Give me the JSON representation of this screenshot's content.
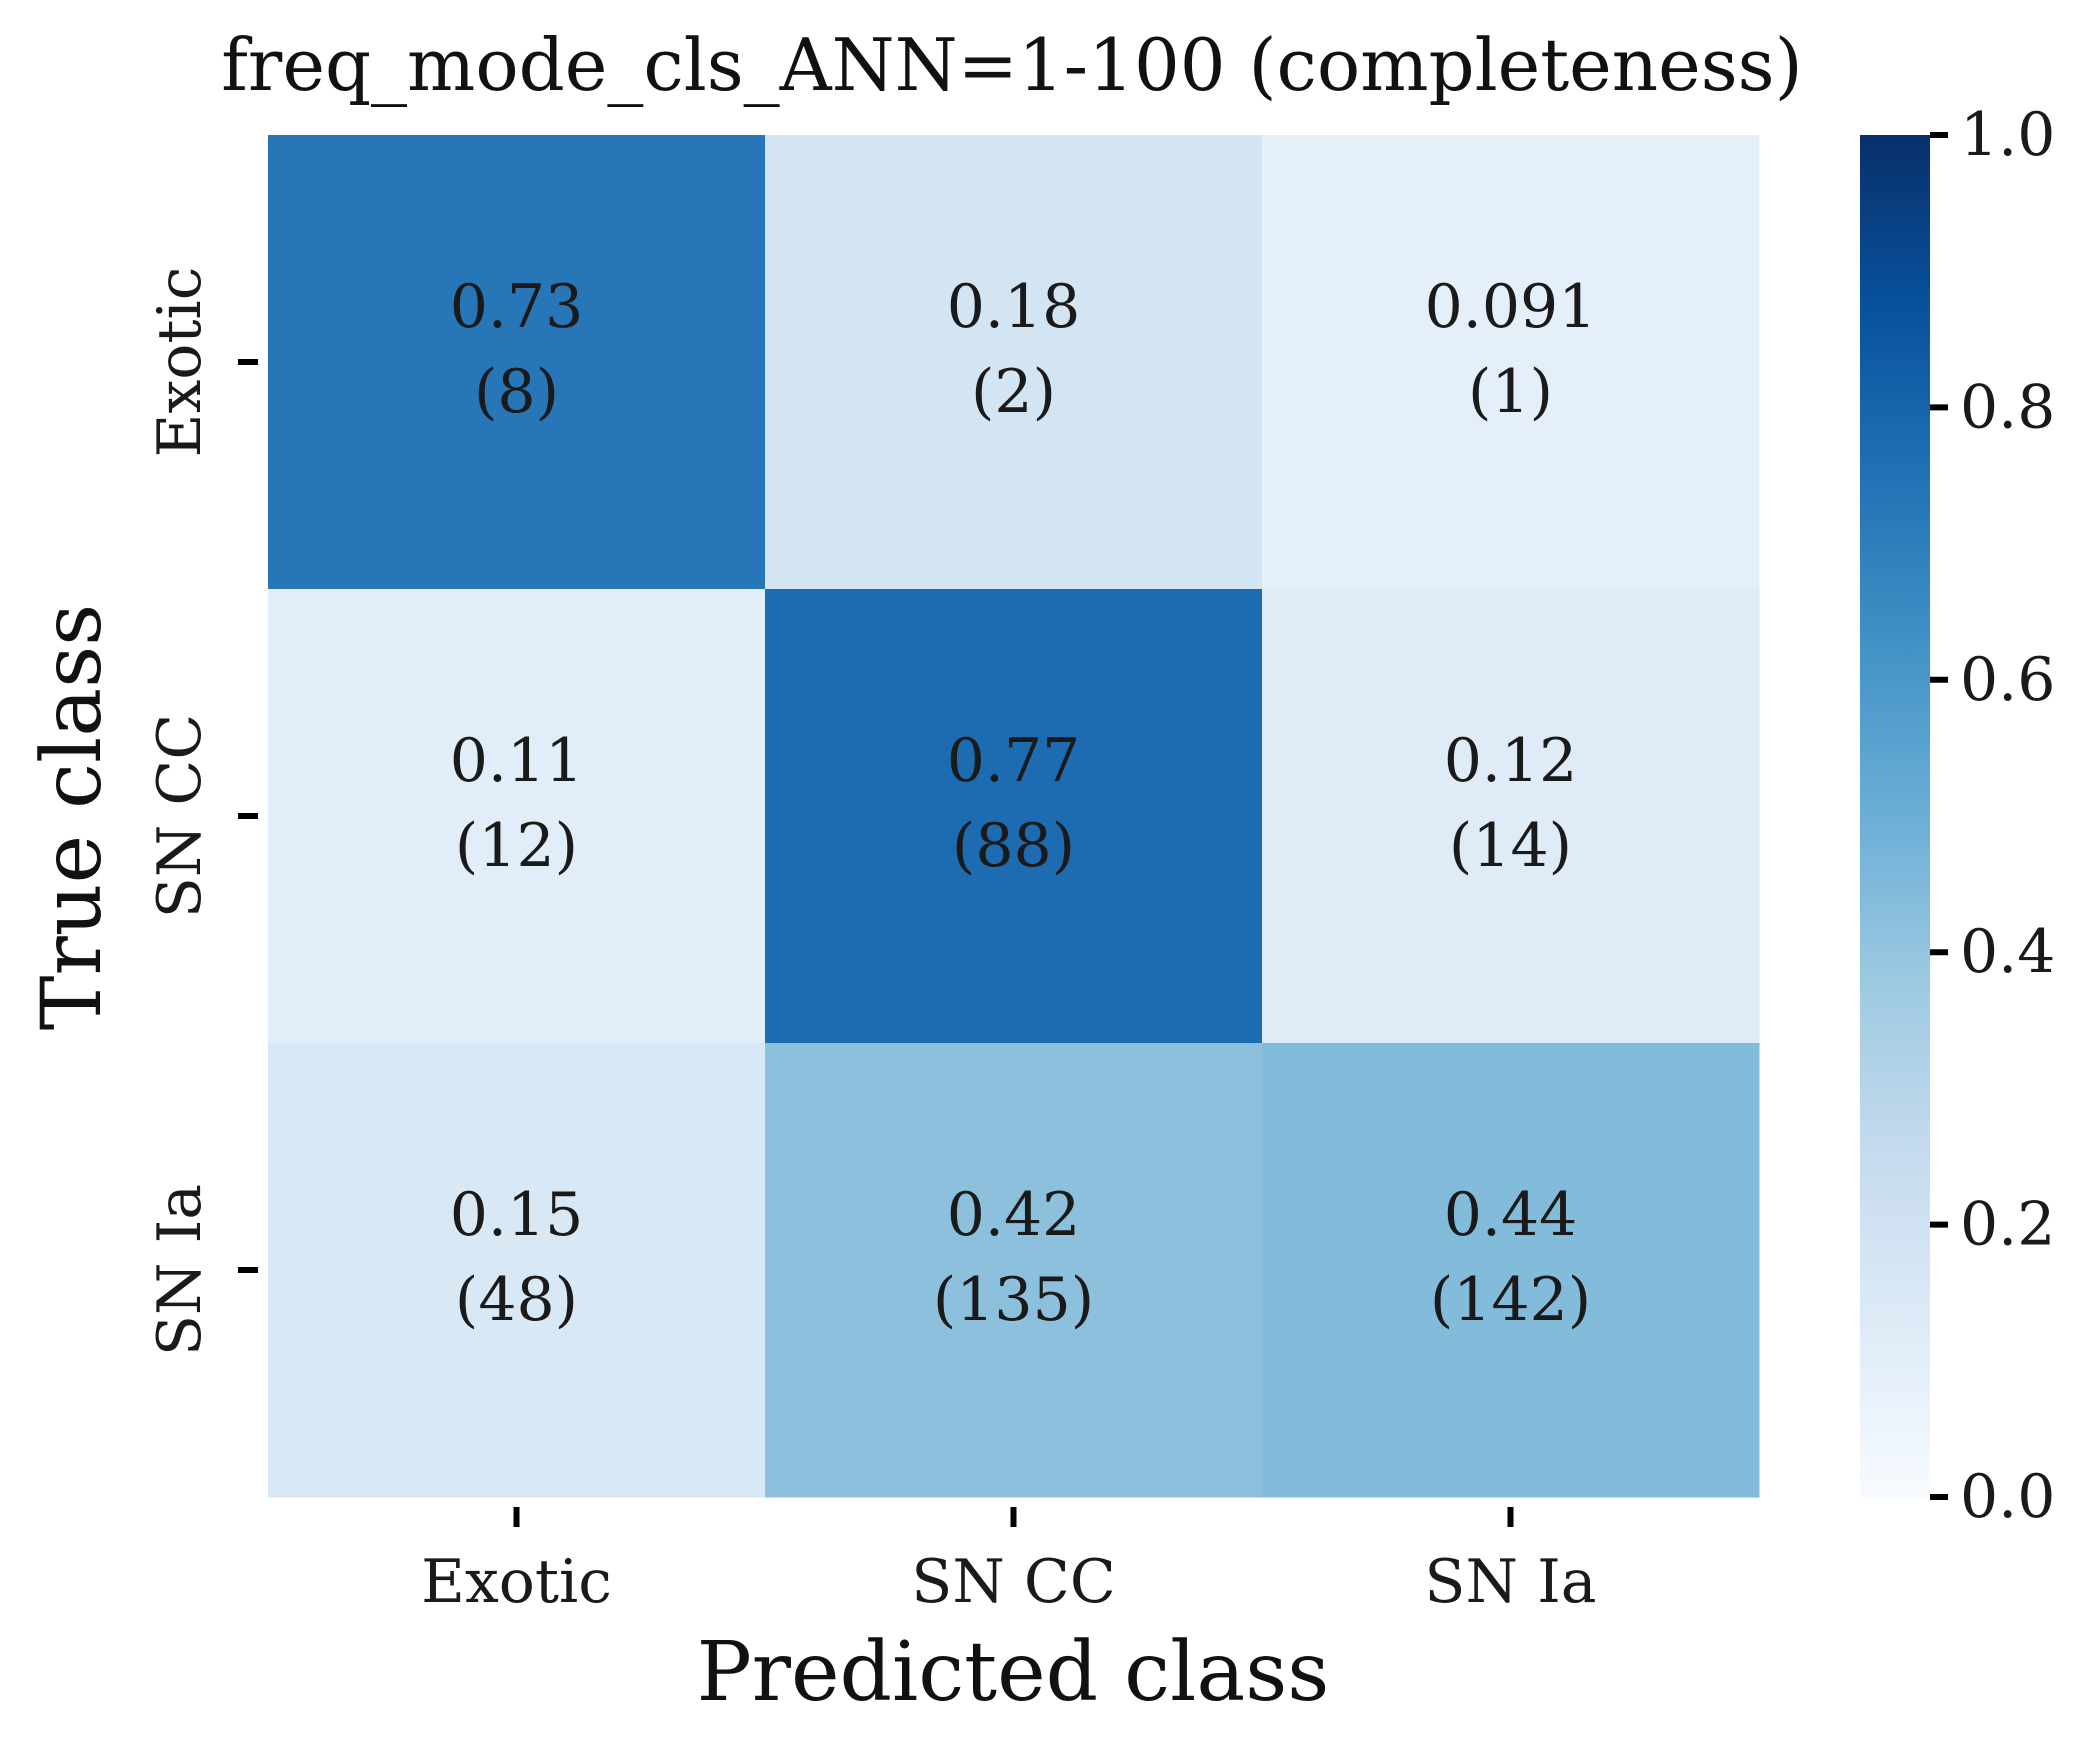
{
  "chart_data": {
    "type": "heatmap",
    "title": "freq_mode_cls_ANN=1-100 (completeness)",
    "xlabel": "Predicted class",
    "ylabel": "True class",
    "x_categories": [
      "Exotic",
      "SN CC",
      "SN Ia"
    ],
    "y_categories": [
      "Exotic",
      "SN CC",
      "SN Ia"
    ],
    "values": [
      [
        0.73,
        0.18,
        0.091
      ],
      [
        0.11,
        0.77,
        0.12
      ],
      [
        0.15,
        0.42,
        0.44
      ]
    ],
    "value_labels": [
      [
        "0.73",
        "0.18",
        "0.091"
      ],
      [
        "0.11",
        "0.77",
        "0.12"
      ],
      [
        "0.15",
        "0.42",
        "0.44"
      ]
    ],
    "counts": [
      [
        8,
        2,
        1
      ],
      [
        12,
        88,
        14
      ],
      [
        48,
        135,
        142
      ]
    ],
    "colorbar": {
      "colormap": "Blues",
      "range": [
        0.0,
        1.0
      ],
      "ticks": [
        0.0,
        0.2,
        0.4,
        0.6,
        0.8,
        1.0
      ],
      "tick_labels": [
        "0.0",
        "0.2",
        "0.4",
        "0.6",
        "0.8",
        "1.0"
      ]
    },
    "grid": false
  }
}
